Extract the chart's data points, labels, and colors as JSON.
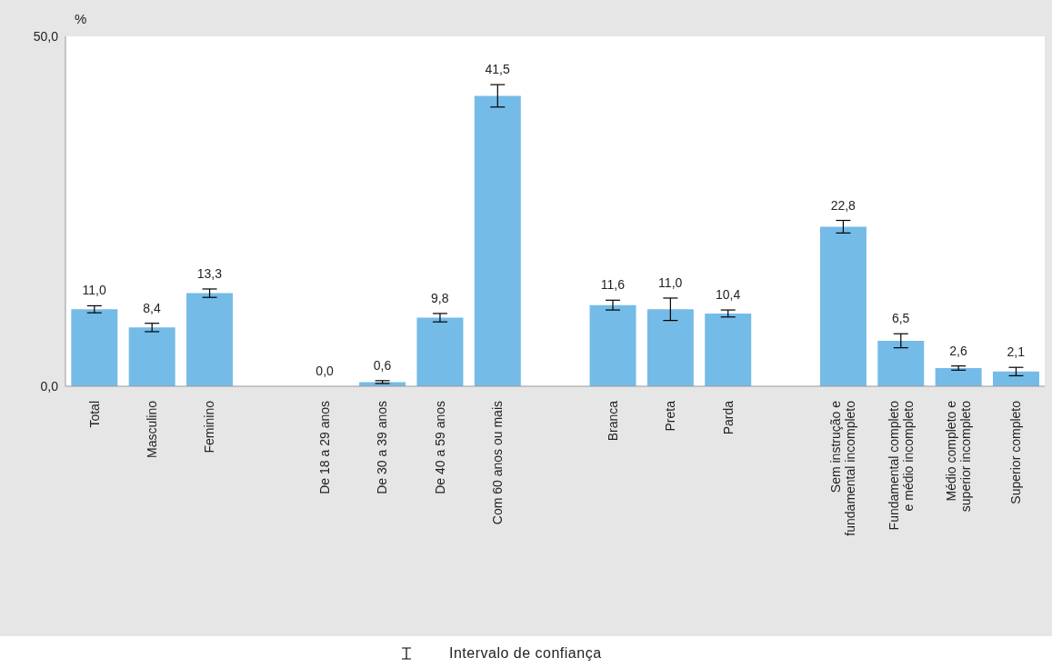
{
  "chart_data": {
    "type": "bar",
    "ylabel": "%",
    "categories": [
      "Total",
      "Masculino",
      "Feminino",
      null,
      "De 18 a 29 anos",
      "De 30 a 39 anos",
      "De 40 a 59 anos",
      "Com 60 anos ou mais",
      null,
      "Branca",
      "Preta",
      "Parda",
      null,
      "Sem instrução e\nfundamental incompleto",
      "Fundamental completo\ne médio incompleto",
      "Médio completo e\nsuperior incompleto",
      "Superior completo"
    ],
    "values": [
      11.0,
      8.4,
      13.3,
      null,
      0.0,
      0.6,
      9.8,
      41.5,
      null,
      11.6,
      11.0,
      10.4,
      null,
      22.8,
      6.5,
      2.6,
      2.1
    ],
    "value_labels": [
      "11,0",
      "8,4",
      "13,3",
      null,
      "0,0",
      "0,6",
      "9,8",
      "41,5",
      null,
      "11,6",
      "11,0",
      "10,4",
      null,
      "22,8",
      "6,5",
      "2,6",
      "2,1"
    ],
    "errors": [
      0.5,
      0.6,
      0.6,
      null,
      0,
      0.2,
      0.6,
      1.6,
      null,
      0.7,
      1.6,
      0.5,
      null,
      0.9,
      1.0,
      0.3,
      0.6
    ],
    "color": "#74bbe8",
    "ylim": [
      0,
      50
    ],
    "yticks": [
      {
        "value": 0,
        "label": "0,0"
      },
      {
        "value": 50,
        "label": "50,0"
      }
    ],
    "annotations": [
      "Intervalo de confiança"
    ]
  }
}
